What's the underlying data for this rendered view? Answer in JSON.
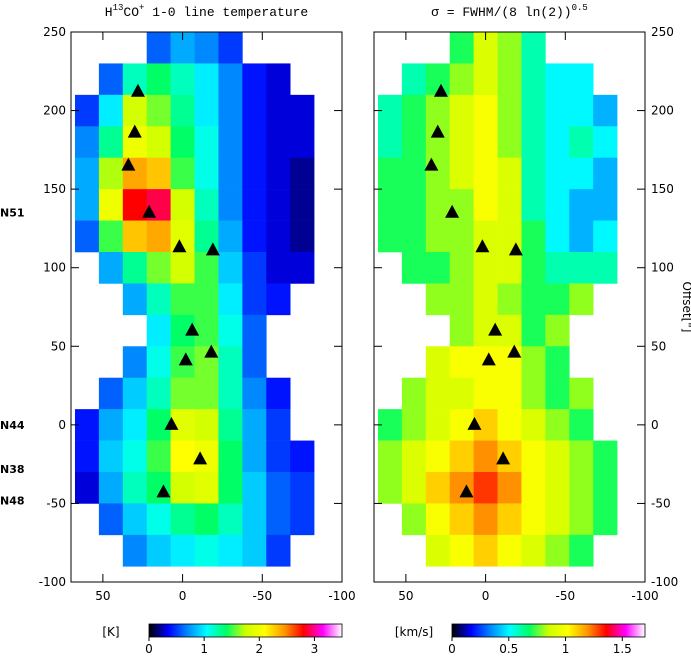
{
  "chart_data": [
    {
      "type": "heatmap",
      "title": {
        "parts": [
          "H",
          "13",
          "CO",
          "+",
          " 1-0 line temperature"
        ]
      },
      "yaxis_side": "left",
      "x": [
        60,
        45,
        30,
        15,
        0,
        -15,
        -30,
        -45,
        -60,
        -75
      ],
      "y": [
        240,
        220,
        200,
        180,
        160,
        140,
        120,
        100,
        80,
        60,
        40,
        20,
        0,
        -20,
        -40,
        -60,
        -80
      ],
      "z": [
        [
          null,
          null,
          null,
          0.6,
          0.8,
          0.7,
          0.5,
          null,
          null,
          null
        ],
        [
          null,
          0.6,
          1.2,
          1.4,
          1.2,
          1.0,
          0.7,
          0.4,
          0.3,
          null
        ],
        [
          0.5,
          1.0,
          1.8,
          1.6,
          1.3,
          1.0,
          0.7,
          0.4,
          0.3,
          0.3
        ],
        [
          0.7,
          1.3,
          2.0,
          1.8,
          1.4,
          1.1,
          0.7,
          0.4,
          0.3,
          0.3
        ],
        [
          0.8,
          1.7,
          2.4,
          2.3,
          1.5,
          1.1,
          0.7,
          0.4,
          0.3,
          0.2
        ],
        [
          0.8,
          2.0,
          2.8,
          2.9,
          1.8,
          1.2,
          0.7,
          0.4,
          0.3,
          0.2
        ],
        [
          0.6,
          1.5,
          2.3,
          2.4,
          1.9,
          1.3,
          0.8,
          0.4,
          0.3,
          0.2
        ],
        [
          null,
          0.8,
          1.3,
          1.6,
          1.8,
          1.5,
          0.9,
          0.5,
          0.3,
          0.3
        ],
        [
          null,
          null,
          0.8,
          1.2,
          1.5,
          1.5,
          1.0,
          0.5,
          0.4,
          null
        ],
        [
          null,
          null,
          null,
          1.0,
          1.4,
          1.5,
          1.1,
          0.6,
          null,
          null
        ],
        [
          null,
          null,
          0.7,
          1.1,
          1.5,
          1.6,
          1.2,
          0.6,
          null,
          null
        ],
        [
          null,
          0.6,
          0.9,
          1.2,
          1.6,
          1.6,
          1.2,
          0.7,
          0.4,
          null
        ],
        [
          0.4,
          0.8,
          1.0,
          1.4,
          1.9,
          1.8,
          1.3,
          0.8,
          0.5,
          null
        ],
        [
          0.4,
          0.9,
          1.1,
          1.5,
          2.1,
          2.0,
          1.4,
          0.8,
          0.5,
          0.4
        ],
        [
          0.3,
          0.8,
          1.2,
          1.4,
          1.8,
          1.9,
          1.4,
          0.9,
          0.6,
          0.5
        ],
        [
          null,
          0.6,
          0.9,
          1.1,
          1.3,
          1.4,
          1.2,
          0.9,
          0.6,
          0.5
        ],
        [
          null,
          null,
          0.7,
          0.9,
          1.0,
          1.1,
          1.0,
          0.9,
          0.5,
          null
        ]
      ],
      "xlim": [
        70,
        -100
      ],
      "ylim": [
        -100,
        250
      ],
      "xticks": [
        50,
        0,
        -50,
        -100
      ],
      "yticks": [
        250,
        200,
        150,
        100,
        50,
        0,
        -50,
        -100
      ],
      "zlim": [
        0,
        3.5
      ],
      "zticks": [
        0,
        1,
        2,
        3
      ],
      "colorbar_label": "[K]",
      "colormap": [
        "#000000",
        "#0000ff",
        "#0088ff",
        "#00ffff",
        "#00ff66",
        "#ccff00",
        "#ffff00",
        "#ff9900",
        "#ff0000",
        "#ff00ff",
        "#ffffff"
      ],
      "markers": {
        "x": [
          28,
          30,
          34,
          21,
          2,
          -19,
          -6,
          -18,
          -2,
          7,
          -11,
          12
        ],
        "y": [
          212,
          186,
          165,
          135,
          113,
          111,
          60,
          46,
          41,
          0,
          -22,
          -43
        ],
        "color": "#000000"
      },
      "source_labels": [
        {
          "label": "N51",
          "y": 135
        },
        {
          "label": "N44",
          "y": 0
        },
        {
          "label": "N38",
          "y": -28
        },
        {
          "label": "N48",
          "y": -48
        }
      ]
    },
    {
      "type": "heatmap",
      "title": {
        "parts": [
          "σ = FWHM/(8 ln(2))",
          "0.5"
        ]
      },
      "yaxis_side": "right",
      "ylabel": "Offset[\"]",
      "x": [
        60,
        45,
        30,
        15,
        0,
        -15,
        -30,
        -45,
        -60,
        -75
      ],
      "y": [
        240,
        220,
        200,
        180,
        160,
        140,
        120,
        100,
        80,
        60,
        40,
        20,
        0,
        -20,
        -40,
        -60,
        -80
      ],
      "z": [
        [
          null,
          null,
          null,
          0.7,
          0.9,
          0.8,
          0.6,
          null,
          null,
          null
        ],
        [
          null,
          0.6,
          0.7,
          0.8,
          0.9,
          0.8,
          0.6,
          0.5,
          0.5,
          null
        ],
        [
          0.6,
          0.7,
          0.8,
          0.9,
          1.0,
          0.8,
          0.6,
          0.5,
          0.5,
          0.4
        ],
        [
          0.6,
          0.7,
          0.8,
          0.9,
          1.0,
          0.8,
          0.6,
          0.5,
          0.6,
          0.5
        ],
        [
          0.7,
          0.7,
          0.8,
          0.9,
          1.0,
          0.9,
          0.6,
          0.5,
          0.5,
          0.4
        ],
        [
          0.7,
          0.7,
          0.8,
          0.8,
          1.0,
          0.9,
          0.6,
          0.5,
          0.4,
          0.4
        ],
        [
          0.7,
          0.7,
          0.8,
          0.8,
          0.9,
          0.9,
          0.7,
          0.5,
          0.4,
          0.5
        ],
        [
          null,
          0.7,
          0.7,
          0.8,
          0.9,
          0.9,
          0.7,
          0.6,
          0.6,
          0.6
        ],
        [
          null,
          null,
          0.8,
          0.8,
          0.9,
          0.8,
          0.7,
          0.7,
          0.8,
          null
        ],
        [
          null,
          null,
          null,
          0.8,
          0.9,
          0.9,
          0.7,
          0.8,
          null,
          null
        ],
        [
          null,
          null,
          0.9,
          1.0,
          1.0,
          1.0,
          0.8,
          0.7,
          null,
          null
        ],
        [
          null,
          0.8,
          0.9,
          0.9,
          1.0,
          1.0,
          0.8,
          0.7,
          0.8,
          null
        ],
        [
          0.7,
          0.8,
          0.9,
          1.0,
          1.1,
          1.0,
          0.9,
          0.8,
          0.7,
          null
        ],
        [
          0.8,
          0.9,
          1.0,
          1.1,
          1.2,
          1.1,
          1.0,
          0.9,
          0.8,
          0.7
        ],
        [
          0.8,
          0.9,
          1.1,
          1.2,
          1.3,
          1.2,
          1.0,
          0.9,
          0.8,
          0.7
        ],
        [
          null,
          0.8,
          1.0,
          1.1,
          1.2,
          1.1,
          1.0,
          0.9,
          0.8,
          0.7
        ],
        [
          null,
          null,
          0.9,
          1.0,
          1.1,
          1.0,
          0.9,
          0.8,
          0.7,
          null
        ]
      ],
      "xlim": [
        70,
        -100
      ],
      "ylim": [
        -100,
        250
      ],
      "xticks": [
        50,
        0,
        -50,
        -100
      ],
      "yticks": [
        250,
        200,
        150,
        100,
        50,
        0,
        -50,
        -100
      ],
      "zlim": [
        0,
        1.7
      ],
      "zticks": [
        0,
        0.5,
        1,
        1.5
      ],
      "colorbar_label": "[km/s]",
      "colormap": [
        "#000000",
        "#0000ff",
        "#0088ff",
        "#00ffff",
        "#00ff66",
        "#ccff00",
        "#ffff00",
        "#ff9900",
        "#ff0000",
        "#ff00ff",
        "#ffffff"
      ],
      "markers": {
        "x": [
          28,
          30,
          34,
          21,
          2,
          -19,
          -6,
          -18,
          -2,
          7,
          -11,
          12
        ],
        "y": [
          212,
          186,
          165,
          135,
          113,
          111,
          60,
          46,
          41,
          0,
          -22,
          -43
        ],
        "color": "#000000"
      }
    }
  ]
}
